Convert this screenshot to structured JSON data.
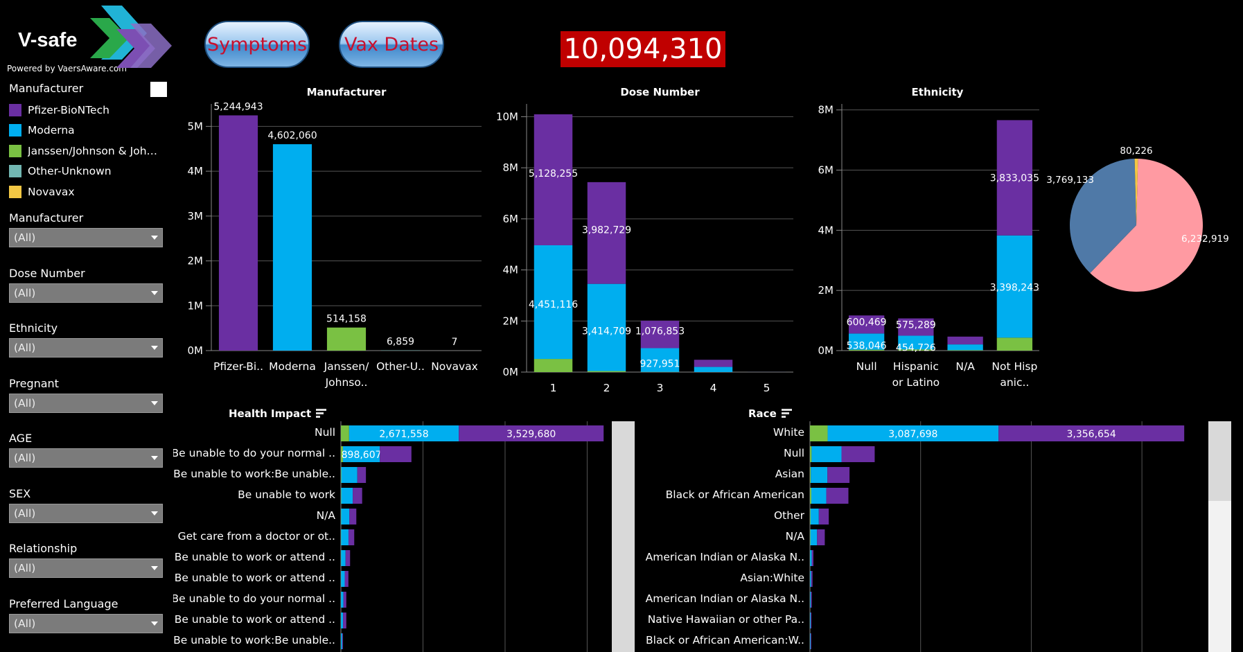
{
  "brand": {
    "name": "V-safe",
    "powered_by": "Powered by VaersAware.com"
  },
  "colors": {
    "pfizer": "#6a2fa2",
    "moderna": "#00aeef",
    "janssen": "#7ac143",
    "other": "#72b7b2",
    "novavax": "#f2c744",
    "pie_pink": "#ff9aa2",
    "pie_blue": "#4f79a7",
    "counter_bg": "#c00000"
  },
  "buttons": {
    "symptoms": "Symptoms",
    "vax_dates": "Vax Dates"
  },
  "total_count": "10,094,310",
  "legend": {
    "title": "Manufacturer",
    "items": [
      {
        "label": "Pfizer-BioNTech",
        "color": "#6a2fa2"
      },
      {
        "label": "Moderna",
        "color": "#00aeef"
      },
      {
        "label": "Janssen/Johnson & Joh…",
        "color": "#7ac143"
      },
      {
        "label": "Other-Unknown",
        "color": "#72b7b2"
      },
      {
        "label": "Novavax",
        "color": "#f2c744"
      }
    ]
  },
  "filters": [
    {
      "title": "Manufacturer",
      "value": "(All)"
    },
    {
      "title": "Dose Number",
      "value": "(All)"
    },
    {
      "title": "Ethnicity",
      "value": "(All)"
    },
    {
      "title": "Pregnant",
      "value": "(All)"
    },
    {
      "title": "AGE",
      "value": "(All)"
    },
    {
      "title": "SEX",
      "value": "(All)"
    },
    {
      "title": "Relationship",
      "value": "(All)"
    },
    {
      "title": "Preferred Language",
      "value": "(All)"
    }
  ],
  "chart_data": [
    {
      "id": "manufacturer",
      "type": "bar",
      "title": "Manufacturer",
      "categories": [
        "Pfizer-Bi..",
        "Moderna",
        "Janssen/\nJohnso..",
        "Other-U..",
        "Novavax"
      ],
      "values": [
        5244943,
        4602060,
        514158,
        6859,
        7
      ],
      "labels": [
        "5,244,943",
        "4,602,060",
        "514,158",
        "6,859",
        "7"
      ],
      "colors": [
        "#6a2fa2",
        "#00aeef",
        "#7ac143",
        "#72b7b2",
        "#f2c744"
      ],
      "ylim": [
        0,
        5500000
      ],
      "yticks": [
        0,
        1000000,
        2000000,
        3000000,
        4000000,
        5000000
      ],
      "yticklabels": [
        "0M",
        "1M",
        "2M",
        "3M",
        "4M",
        "5M"
      ]
    },
    {
      "id": "dose",
      "type": "bar",
      "stacked": true,
      "title": "Dose Number",
      "categories": [
        "1",
        "2",
        "3",
        "4",
        "5"
      ],
      "series": [
        {
          "name": "Janssen/Johnson & Johnson",
          "color": "#7ac143",
          "values": [
            514158,
            40000,
            8000,
            2000,
            0
          ]
        },
        {
          "name": "Moderna",
          "color": "#00aeef",
          "values": [
            4451116,
            3414709,
            927951,
            200000,
            1000
          ]
        },
        {
          "name": "Pfizer-BioNTech",
          "color": "#6a2fa2",
          "values": [
            5128255,
            3982729,
            1076853,
            280000,
            2000
          ]
        }
      ],
      "labels": {
        "Moderna": [
          "4,451,116",
          "3,414,709",
          "927,951",
          "",
          ""
        ],
        "Pfizer-BioNTech": [
          "5,128,255",
          "3,982,729",
          "1,076,853",
          "",
          ""
        ]
      },
      "ylim": [
        0,
        10500000
      ],
      "yticks": [
        0,
        2000000,
        4000000,
        6000000,
        8000000,
        10000000
      ],
      "yticklabels": [
        "0M",
        "2M",
        "4M",
        "6M",
        "8M",
        "10M"
      ]
    },
    {
      "id": "ethnicity",
      "type": "bar",
      "stacked": true,
      "title": "Ethnicity",
      "categories": [
        "Null",
        "Hispanic\nor Latino",
        "N/A",
        "Not Hisp\nanic.."
      ],
      "series": [
        {
          "name": "Janssen/Johnson & Johnson",
          "color": "#7ac143",
          "values": [
            30000,
            40000,
            15000,
            430000
          ]
        },
        {
          "name": "Moderna",
          "color": "#00aeef",
          "values": [
            538046,
            454726,
            190000,
            3398243
          ]
        },
        {
          "name": "Pfizer-BioNTech",
          "color": "#6a2fa2",
          "values": [
            600469,
            575289,
            260000,
            3833035
          ]
        }
      ],
      "labels": {
        "Moderna": [
          "538,046",
          "454,726",
          "",
          "3,398,243"
        ],
        "Pfizer-BioNTech": [
          "600,469",
          "575,289",
          "",
          "3,833,035"
        ]
      },
      "ylim": [
        0,
        8200000
      ],
      "yticks": [
        0,
        2000000,
        4000000,
        6000000,
        8000000
      ],
      "yticklabels": [
        "0M",
        "2M",
        "4M",
        "6M",
        "8M"
      ]
    },
    {
      "id": "pie",
      "type": "pie",
      "slices": [
        {
          "value": 6232919,
          "label": "6,232,919",
          "color": "#ff9aa2"
        },
        {
          "value": 3769133,
          "label": "3,769,133",
          "color": "#4f79a7"
        },
        {
          "value": 80226,
          "label": "80,226",
          "color": "#f2c744"
        }
      ]
    },
    {
      "id": "health",
      "type": "bar",
      "orientation": "horizontal",
      "stacked": true,
      "title": "Health Impact",
      "categories": [
        "Null",
        "Be unable to do your normal ..",
        "Be unable to work:Be unable..",
        "Be unable to work",
        "N/A",
        "Get care from a doctor or ot..",
        "Be unable to work or attend ..",
        "Be unable to work or attend ..",
        "Be unable to do your normal ..",
        "Be unable to work or attend ..",
        "Be unable to work:Be unable.."
      ],
      "series": [
        {
          "name": "Janssen/Johnson & Johnson",
          "color": "#7ac143",
          "values": [
            200000,
            50000,
            10000,
            8000,
            6000,
            5000,
            4000,
            3000,
            2000,
            2000,
            1000
          ]
        },
        {
          "name": "Moderna",
          "color": "#00aeef",
          "values": [
            2671558,
            898607,
            390000,
            280000,
            200000,
            180000,
            110000,
            90000,
            60000,
            50000,
            30000
          ]
        },
        {
          "name": "Pfizer-BioNTech",
          "color": "#6a2fa2",
          "values": [
            3529680,
            770000,
            210000,
            230000,
            170000,
            140000,
            110000,
            90000,
            70000,
            80000,
            20000
          ]
        }
      ],
      "labels": {
        "Moderna": [
          "2,671,558",
          "898,607",
          "",
          "",
          "",
          "",
          "",
          "",
          "",
          "",
          ""
        ],
        "Pfizer-BioNTech": [
          "3,529,680",
          "",
          "",
          "",
          "",
          "",
          "",
          "",
          "",
          "",
          ""
        ]
      },
      "xlim": [
        0,
        6600000
      ],
      "gridlines": [
        2000000,
        4000000,
        6000000
      ]
    },
    {
      "id": "race",
      "type": "bar",
      "orientation": "horizontal",
      "stacked": true,
      "title": "Race",
      "categories": [
        "White",
        "Null",
        "Asian",
        "Black or African American",
        "Other",
        "N/A",
        "American Indian or Alaska N..",
        "Asian:White",
        "American Indian or Alaska N..",
        "Native Hawaiian or other Pa..",
        "Black or African American:W.."
      ],
      "series": [
        {
          "name": "Janssen/Johnson & Johnson",
          "color": "#7ac143",
          "values": [
            320000,
            30000,
            15000,
            25000,
            10000,
            8000,
            2000,
            1000,
            1000,
            1000,
            1000
          ]
        },
        {
          "name": "Moderna",
          "color": "#00aeef",
          "values": [
            3087698,
            540000,
            300000,
            270000,
            150000,
            120000,
            30000,
            20000,
            15000,
            12000,
            10000
          ]
        },
        {
          "name": "Pfizer-BioNTech",
          "color": "#6a2fa2",
          "values": [
            3356654,
            600000,
            400000,
            400000,
            180000,
            140000,
            30000,
            25000,
            18000,
            14000,
            12000
          ]
        }
      ],
      "labels": {
        "Moderna": [
          "3,087,698",
          "",
          "",
          "",
          "",
          "",
          "",
          "",
          "",
          "",
          ""
        ],
        "Pfizer-BioNTech": [
          "3,356,654",
          "",
          "",
          "",
          "",
          "",
          "",
          "",
          "",
          "",
          ""
        ]
      },
      "xlim": [
        0,
        6900000
      ],
      "gridlines": [
        2000000,
        4000000,
        6000000
      ]
    }
  ]
}
